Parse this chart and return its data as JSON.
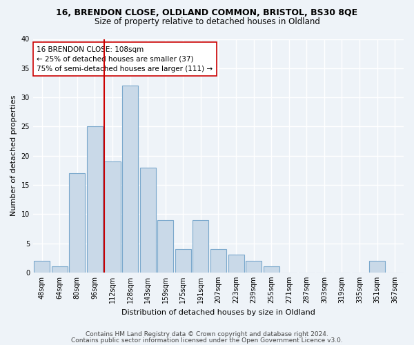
{
  "title1": "16, BRENDON CLOSE, OLDLAND COMMON, BRISTOL, BS30 8QE",
  "title2": "Size of property relative to detached houses in Oldland",
  "xlabel": "Distribution of detached houses by size in Oldland",
  "ylabel": "Number of detached properties",
  "bar_labels": [
    "48sqm",
    "64sqm",
    "80sqm",
    "96sqm",
    "112sqm",
    "128sqm",
    "143sqm",
    "159sqm",
    "175sqm",
    "191sqm",
    "207sqm",
    "223sqm",
    "239sqm",
    "255sqm",
    "271sqm",
    "287sqm",
    "303sqm",
    "319sqm",
    "335sqm",
    "351sqm",
    "367sqm"
  ],
  "bar_values": [
    2,
    1,
    17,
    25,
    19,
    32,
    18,
    9,
    4,
    9,
    4,
    3,
    2,
    1,
    0,
    0,
    0,
    0,
    0,
    2,
    0
  ],
  "bar_color": "#c9d9e8",
  "bar_edge_color": "#7aa8cc",
  "vline_index": 4,
  "vline_color": "#cc0000",
  "annotation_line1": "16 BRENDON CLOSE: 108sqm",
  "annotation_line2": "← 25% of detached houses are smaller (37)",
  "annotation_line3": "75% of semi-detached houses are larger (111) →",
  "ylim": [
    0,
    40
  ],
  "yticks": [
    0,
    5,
    10,
    15,
    20,
    25,
    30,
    35,
    40
  ],
  "footnote1": "Contains HM Land Registry data © Crown copyright and database right 2024.",
  "footnote2": "Contains public sector information licensed under the Open Government Licence v3.0.",
  "bg_color": "#eef3f8",
  "plot_bg_color": "#eef3f8",
  "grid_color": "#ffffff",
  "title1_fontsize": 9,
  "title2_fontsize": 8.5,
  "axis_label_fontsize": 8,
  "tick_fontsize": 7,
  "annotation_fontsize": 7.5,
  "footnote_fontsize": 6.5
}
